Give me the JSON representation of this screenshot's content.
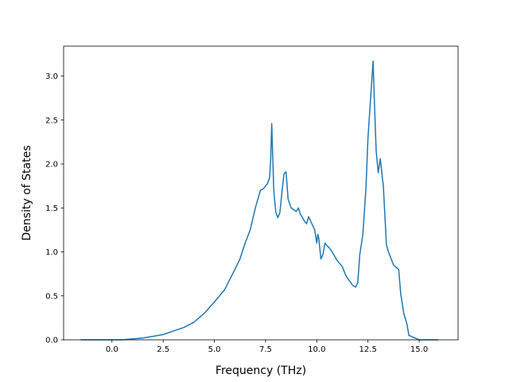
{
  "chart_data": {
    "type": "line",
    "title": "",
    "xlabel": "Frequency (THz)",
    "ylabel": "Density of States",
    "xlim": [
      -2.36,
      16.9
    ],
    "ylim": [
      0.0,
      3.34
    ],
    "xticks": [
      0.0,
      2.5,
      5.0,
      7.5,
      10.0,
      12.5,
      15.0
    ],
    "xtick_labels": [
      "0.0",
      "2.5",
      "5.0",
      "7.5",
      "10.0",
      "12.5",
      "15.0"
    ],
    "yticks": [
      0.0,
      0.5,
      1.0,
      1.5,
      2.0,
      2.5,
      3.0
    ],
    "ytick_labels": [
      "0.0",
      "0.5",
      "1.0",
      "1.5",
      "2.0",
      "2.5",
      "3.0"
    ],
    "grid": false,
    "line_color": "#1f77b4",
    "series": [
      {
        "name": "",
        "x": [
          -1.5,
          0.0,
          0.5,
          1.0,
          1.5,
          2.0,
          2.5,
          3.0,
          3.5,
          4.0,
          4.5,
          5.0,
          5.5,
          6.0,
          6.25,
          6.5,
          6.75,
          7.0,
          7.1,
          7.25,
          7.4,
          7.5,
          7.6,
          7.7,
          7.75,
          7.8,
          7.9,
          8.0,
          8.1,
          8.2,
          8.3,
          8.4,
          8.5,
          8.6,
          8.75,
          9.0,
          9.1,
          9.2,
          9.4,
          9.5,
          9.6,
          9.7,
          9.9,
          10.0,
          10.05,
          10.1,
          10.2,
          10.3,
          10.4,
          10.5,
          10.6,
          10.75,
          11.0,
          11.25,
          11.4,
          11.5,
          11.6,
          11.75,
          11.9,
          12.0,
          12.1,
          12.25,
          12.4,
          12.5,
          12.6,
          12.75,
          12.8,
          12.9,
          13.0,
          13.1,
          13.2,
          13.25,
          13.4,
          13.5,
          13.75,
          14.0,
          14.1,
          14.25,
          14.4,
          14.5,
          15.0,
          15.5,
          15.9
        ],
        "y": [
          0.0,
          0.0,
          0.0,
          0.01,
          0.02,
          0.04,
          0.06,
          0.1,
          0.14,
          0.2,
          0.3,
          0.43,
          0.57,
          0.8,
          0.92,
          1.1,
          1.25,
          1.5,
          1.58,
          1.7,
          1.72,
          1.75,
          1.78,
          1.85,
          2.05,
          2.46,
          1.7,
          1.45,
          1.39,
          1.45,
          1.68,
          1.89,
          1.91,
          1.6,
          1.5,
          1.46,
          1.5,
          1.43,
          1.35,
          1.32,
          1.4,
          1.35,
          1.25,
          1.1,
          1.2,
          1.15,
          0.92,
          0.97,
          1.1,
          1.07,
          1.05,
          1.0,
          0.9,
          0.83,
          0.74,
          0.7,
          0.67,
          0.62,
          0.6,
          0.65,
          0.97,
          1.2,
          1.72,
          2.3,
          2.65,
          3.17,
          2.8,
          2.15,
          1.9,
          2.06,
          1.85,
          1.75,
          1.08,
          1.0,
          0.85,
          0.8,
          0.52,
          0.3,
          0.18,
          0.05,
          0.0,
          0.0,
          0.0
        ]
      }
    ]
  }
}
